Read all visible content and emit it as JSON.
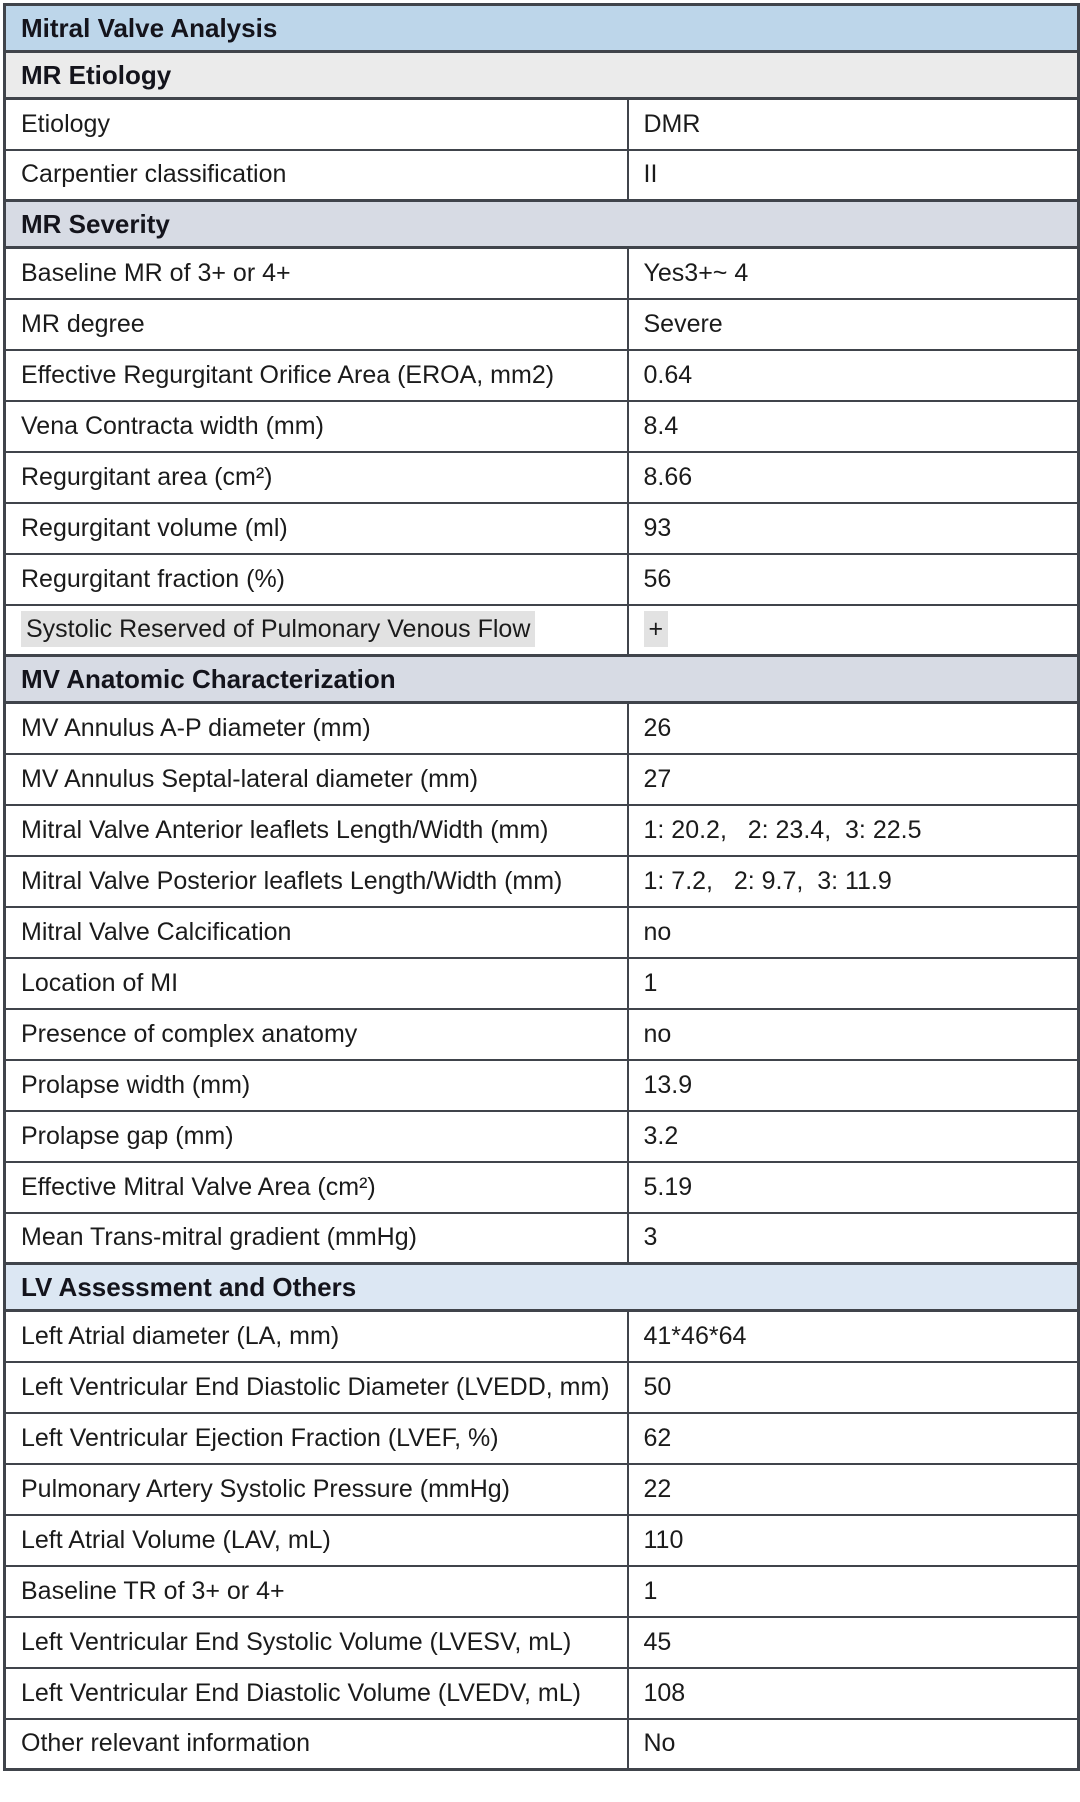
{
  "colors": {
    "title_bg": "#bdd6ea",
    "section_gray_bg": "#ebebeb",
    "section_bluegray_bg": "#d7dbe4",
    "section_lightblue_bg": "#dce7f3",
    "border": "#40444b",
    "highlight_bg": "#e2e2e2"
  },
  "table": {
    "title": "Mitral Valve Analysis",
    "sections": [
      {
        "title": "MR Etiology",
        "style": "gray",
        "rows": [
          {
            "label": "Etiology",
            "value": "DMR"
          },
          {
            "label": "Carpentier classification",
            "value": "II"
          }
        ]
      },
      {
        "title": "MR Severity",
        "style": "bluegray",
        "rows": [
          {
            "label": "Baseline MR of 3+ or 4+",
            "value": "Yes3+~ 4"
          },
          {
            "label": "MR degree",
            "value": "Severe"
          },
          {
            "label": "Effective Regurgitant Orifice Area (EROA, mm2)",
            "value": "0.64"
          },
          {
            "label": "Vena Contracta width (mm)",
            "value": "8.4"
          },
          {
            "label": "Regurgitant area (cm²)",
            "value": "8.66"
          },
          {
            "label": "Regurgitant volume (ml)",
            "value": "93"
          },
          {
            "label": "Regurgitant fraction (%)",
            "value": "56"
          },
          {
            "label": "Systolic Reserved of Pulmonary Venous Flow",
            "value": "+",
            "highlight": true
          }
        ]
      },
      {
        "title": "MV Anatomic Characterization",
        "style": "bluegray",
        "rows": [
          {
            "label": "MV Annulus A-P diameter (mm)",
            "value": "26"
          },
          {
            "label": "MV Annulus Septal-lateral diameter (mm)",
            "value": "27"
          },
          {
            "label": "Mitral Valve Anterior leaflets Length/Width (mm)",
            "value": "1: 20.2,   2: 23.4,  3: 22.5"
          },
          {
            "label": "Mitral Valve Posterior leaflets Length/Width (mm)",
            "value": "1: 7.2,   2: 9.7,  3: 11.9"
          },
          {
            "label": "Mitral Valve Calcification",
            "value": "no"
          },
          {
            "label": "Location of MI",
            "value": "1"
          },
          {
            "label": "Presence of complex anatomy",
            "value": "no"
          },
          {
            "label": "Prolapse width (mm)",
            "value": "13.9"
          },
          {
            "label": "Prolapse gap (mm)",
            "value": "3.2"
          },
          {
            "label": "Effective Mitral Valve Area (cm²)",
            "value": "5.19"
          },
          {
            "label": "Mean Trans-mitral gradient (mmHg)",
            "value": "3"
          }
        ]
      },
      {
        "title": "LV Assessment and Others",
        "style": "lightblue",
        "rows": [
          {
            "label": "Left Atrial diameter (LA, mm)",
            "value": "41*46*64"
          },
          {
            "label": "Left Ventricular End Diastolic Diameter (LVEDD, mm)",
            "value": "50"
          },
          {
            "label": "Left Ventricular Ejection Fraction (LVEF, %)",
            "value": "62"
          },
          {
            "label": "Pulmonary Artery Systolic Pressure (mmHg)",
            "value": "22"
          },
          {
            "label": "Left Atrial Volume (LAV, mL)",
            "value": "110"
          },
          {
            "label": "Baseline TR of 3+ or 4+",
            "value": "1"
          },
          {
            "label": "Left Ventricular End Systolic Volume (LVESV, mL)",
            "value": "45"
          },
          {
            "label": "Left Ventricular End Diastolic Volume (LVEDV, mL)",
            "value": "108"
          },
          {
            "label": "Other relevant information",
            "value": "No"
          }
        ]
      }
    ]
  }
}
